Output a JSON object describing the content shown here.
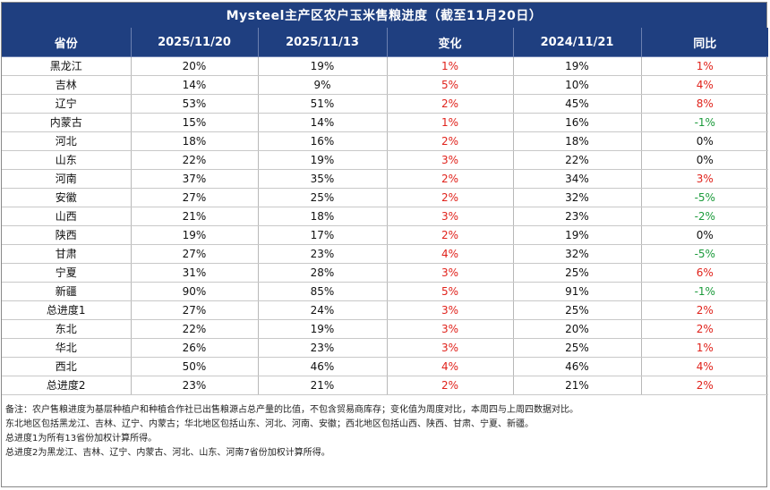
{
  "title": "Mysteel主产区农户玉米售粮进度（截至11月20日）",
  "columns": [
    "省份",
    "2025/11/20",
    "2025/11/13",
    "变化",
    "2024/11/21",
    "同比"
  ],
  "rows": [
    {
      "province": "黑龙江",
      "cur": "20%",
      "prev": "19%",
      "change": "1%",
      "last_year": "19%",
      "yoy": "1%",
      "yoy_sign": "pos"
    },
    {
      "province": "吉林",
      "cur": "14%",
      "prev": "9%",
      "change": "5%",
      "last_year": "10%",
      "yoy": "4%",
      "yoy_sign": "pos"
    },
    {
      "province": "辽宁",
      "cur": "53%",
      "prev": "51%",
      "change": "2%",
      "last_year": "45%",
      "yoy": "8%",
      "yoy_sign": "pos"
    },
    {
      "province": "内蒙古",
      "cur": "15%",
      "prev": "14%",
      "change": "1%",
      "last_year": "16%",
      "yoy": "-1%",
      "yoy_sign": "neg"
    },
    {
      "province": "河北",
      "cur": "18%",
      "prev": "16%",
      "change": "2%",
      "last_year": "18%",
      "yoy": "0%",
      "yoy_sign": "zero"
    },
    {
      "province": "山东",
      "cur": "22%",
      "prev": "19%",
      "change": "3%",
      "last_year": "22%",
      "yoy": "0%",
      "yoy_sign": "zero"
    },
    {
      "province": "河南",
      "cur": "37%",
      "prev": "35%",
      "change": "2%",
      "last_year": "34%",
      "yoy": "3%",
      "yoy_sign": "pos"
    },
    {
      "province": "安徽",
      "cur": "27%",
      "prev": "25%",
      "change": "2%",
      "last_year": "32%",
      "yoy": "-5%",
      "yoy_sign": "neg"
    },
    {
      "province": "山西",
      "cur": "21%",
      "prev": "18%",
      "change": "3%",
      "last_year": "23%",
      "yoy": "-2%",
      "yoy_sign": "neg"
    },
    {
      "province": "陕西",
      "cur": "19%",
      "prev": "17%",
      "change": "2%",
      "last_year": "19%",
      "yoy": "0%",
      "yoy_sign": "zero"
    },
    {
      "province": "甘肃",
      "cur": "27%",
      "prev": "23%",
      "change": "4%",
      "last_year": "32%",
      "yoy": "-5%",
      "yoy_sign": "neg"
    },
    {
      "province": "宁夏",
      "cur": "31%",
      "prev": "28%",
      "change": "3%",
      "last_year": "25%",
      "yoy": "6%",
      "yoy_sign": "pos"
    },
    {
      "province": "新疆",
      "cur": "90%",
      "prev": "85%",
      "change": "5%",
      "last_year": "91%",
      "yoy": "-1%",
      "yoy_sign": "neg"
    },
    {
      "province": "总进度1",
      "cur": "27%",
      "prev": "24%",
      "change": "3%",
      "last_year": "25%",
      "yoy": "2%",
      "yoy_sign": "pos"
    },
    {
      "province": "东北",
      "cur": "22%",
      "prev": "19%",
      "change": "3%",
      "last_year": "20%",
      "yoy": "2%",
      "yoy_sign": "pos"
    },
    {
      "province": "华北",
      "cur": "26%",
      "prev": "23%",
      "change": "3%",
      "last_year": "25%",
      "yoy": "1%",
      "yoy_sign": "pos"
    },
    {
      "province": "西北",
      "cur": "50%",
      "prev": "46%",
      "change": "4%",
      "last_year": "46%",
      "yoy": "4%",
      "yoy_sign": "pos"
    },
    {
      "province": "总进度2",
      "cur": "23%",
      "prev": "21%",
      "change": "2%",
      "last_year": "21%",
      "yoy": "2%",
      "yoy_sign": "pos"
    }
  ],
  "notes": [
    "备注：农户售粮进度为基层种植户和种植合作社已出售粮源占总产量的比值，不包含贸易商库存；变化值为周度对比，本周四与上周四数据对比。",
    "东北地区包括黑龙江、吉林、辽宁、内蒙古；华北地区包括山东、河北、河南、安徽；西北地区包括山西、陕西、甘肃、宁夏、新疆。",
    "总进度1为所有13省份加权计算所得。",
    "总进度2为黑龙江、吉林、辽宁、内蒙古、河北、山东、河南7省份加权计算所得。"
  ],
  "colors": {
    "header_bg": "#1f3f80",
    "change_positive": "#e0221b",
    "yoy_negative": "#1a9a3a"
  }
}
